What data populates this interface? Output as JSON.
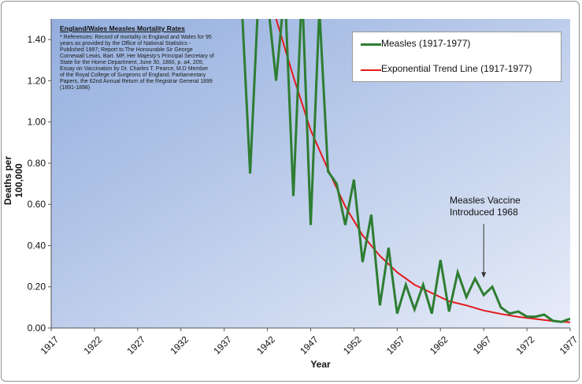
{
  "chart_data": {
    "type": "line",
    "title": "England/Wales Measles Mortality Rates",
    "references": "* References: Record of mortality in England and Wales for 95 years as provided by the Office of National Statistics - Published 1997; Report to The Honourable Sir George Cornewall Lewis, Bart. MP, Her Majesty's Principal Secretary of State for the Home Department, June 30, 1860, p. a4, 205; Essay on Vaccination by Dr. Charles T. Pearce, M.D Member of the Royal College of Surgeons of England; Parliamentary Papers, the 62nd Annual Return of the Registrar General 1899 (1891-1898)",
    "xlabel": "Year",
    "ylabel": "Deaths per 100,000",
    "xlim": [
      1917,
      1977
    ],
    "ylim": [
      0,
      1.5
    ],
    "x_ticks": [
      "1917",
      "1922",
      "1927",
      "1932",
      "1937",
      "1942",
      "1947",
      "1952",
      "1957",
      "1962",
      "1967",
      "1972",
      "1977"
    ],
    "y_ticks": [
      "0.00",
      "0.20",
      "0.40",
      "0.60",
      "0.80",
      "1.00",
      "1.20",
      "1.40"
    ],
    "legend_position": "top-right",
    "series": [
      {
        "name": "Measles (1917-1977)",
        "color": "#2e7d32",
        "x": [
          1939,
          1940,
          1941,
          1942,
          1943,
          1944,
          1945,
          1946,
          1947,
          1948,
          1949,
          1950,
          1951,
          1952,
          1953,
          1954,
          1955,
          1956,
          1957,
          1958,
          1959,
          1960,
          1961,
          1962,
          1963,
          1964,
          1965,
          1966,
          1967,
          1968,
          1969,
          1970,
          1971,
          1972,
          1973,
          1974,
          1975,
          1976,
          1977
        ],
        "values": [
          1.6,
          0.75,
          1.65,
          1.6,
          1.2,
          1.65,
          0.64,
          1.65,
          0.5,
          1.55,
          0.76,
          0.7,
          0.5,
          0.72,
          0.32,
          0.55,
          0.11,
          0.39,
          0.07,
          0.21,
          0.09,
          0.21,
          0.07,
          0.33,
          0.08,
          0.27,
          0.15,
          0.24,
          0.16,
          0.2,
          0.1,
          0.07,
          0.08,
          0.055,
          0.055,
          0.065,
          0.035,
          0.03,
          0.045
        ]
      },
      {
        "name": "Exponential Trend Line (1917-1977)",
        "color": "#e31a1a",
        "model": "exponential",
        "x": [
          1943,
          1945,
          1947,
          1949,
          1951,
          1953,
          1955,
          1957,
          1959,
          1961,
          1963,
          1965,
          1967,
          1969,
          1971,
          1973,
          1975,
          1977
        ],
        "values": [
          1.5,
          1.22,
          0.96,
          0.77,
          0.59,
          0.45,
          0.35,
          0.27,
          0.21,
          0.17,
          0.13,
          0.11,
          0.085,
          0.068,
          0.054,
          0.044,
          0.034,
          0.028
        ]
      }
    ],
    "annotation": {
      "text_line1": "Measles Vaccine",
      "text_line2": "Introduced 1968",
      "x": 1967,
      "y": 0.24
    },
    "background_gradient": [
      "#93aede",
      "#e7ecf8"
    ]
  }
}
